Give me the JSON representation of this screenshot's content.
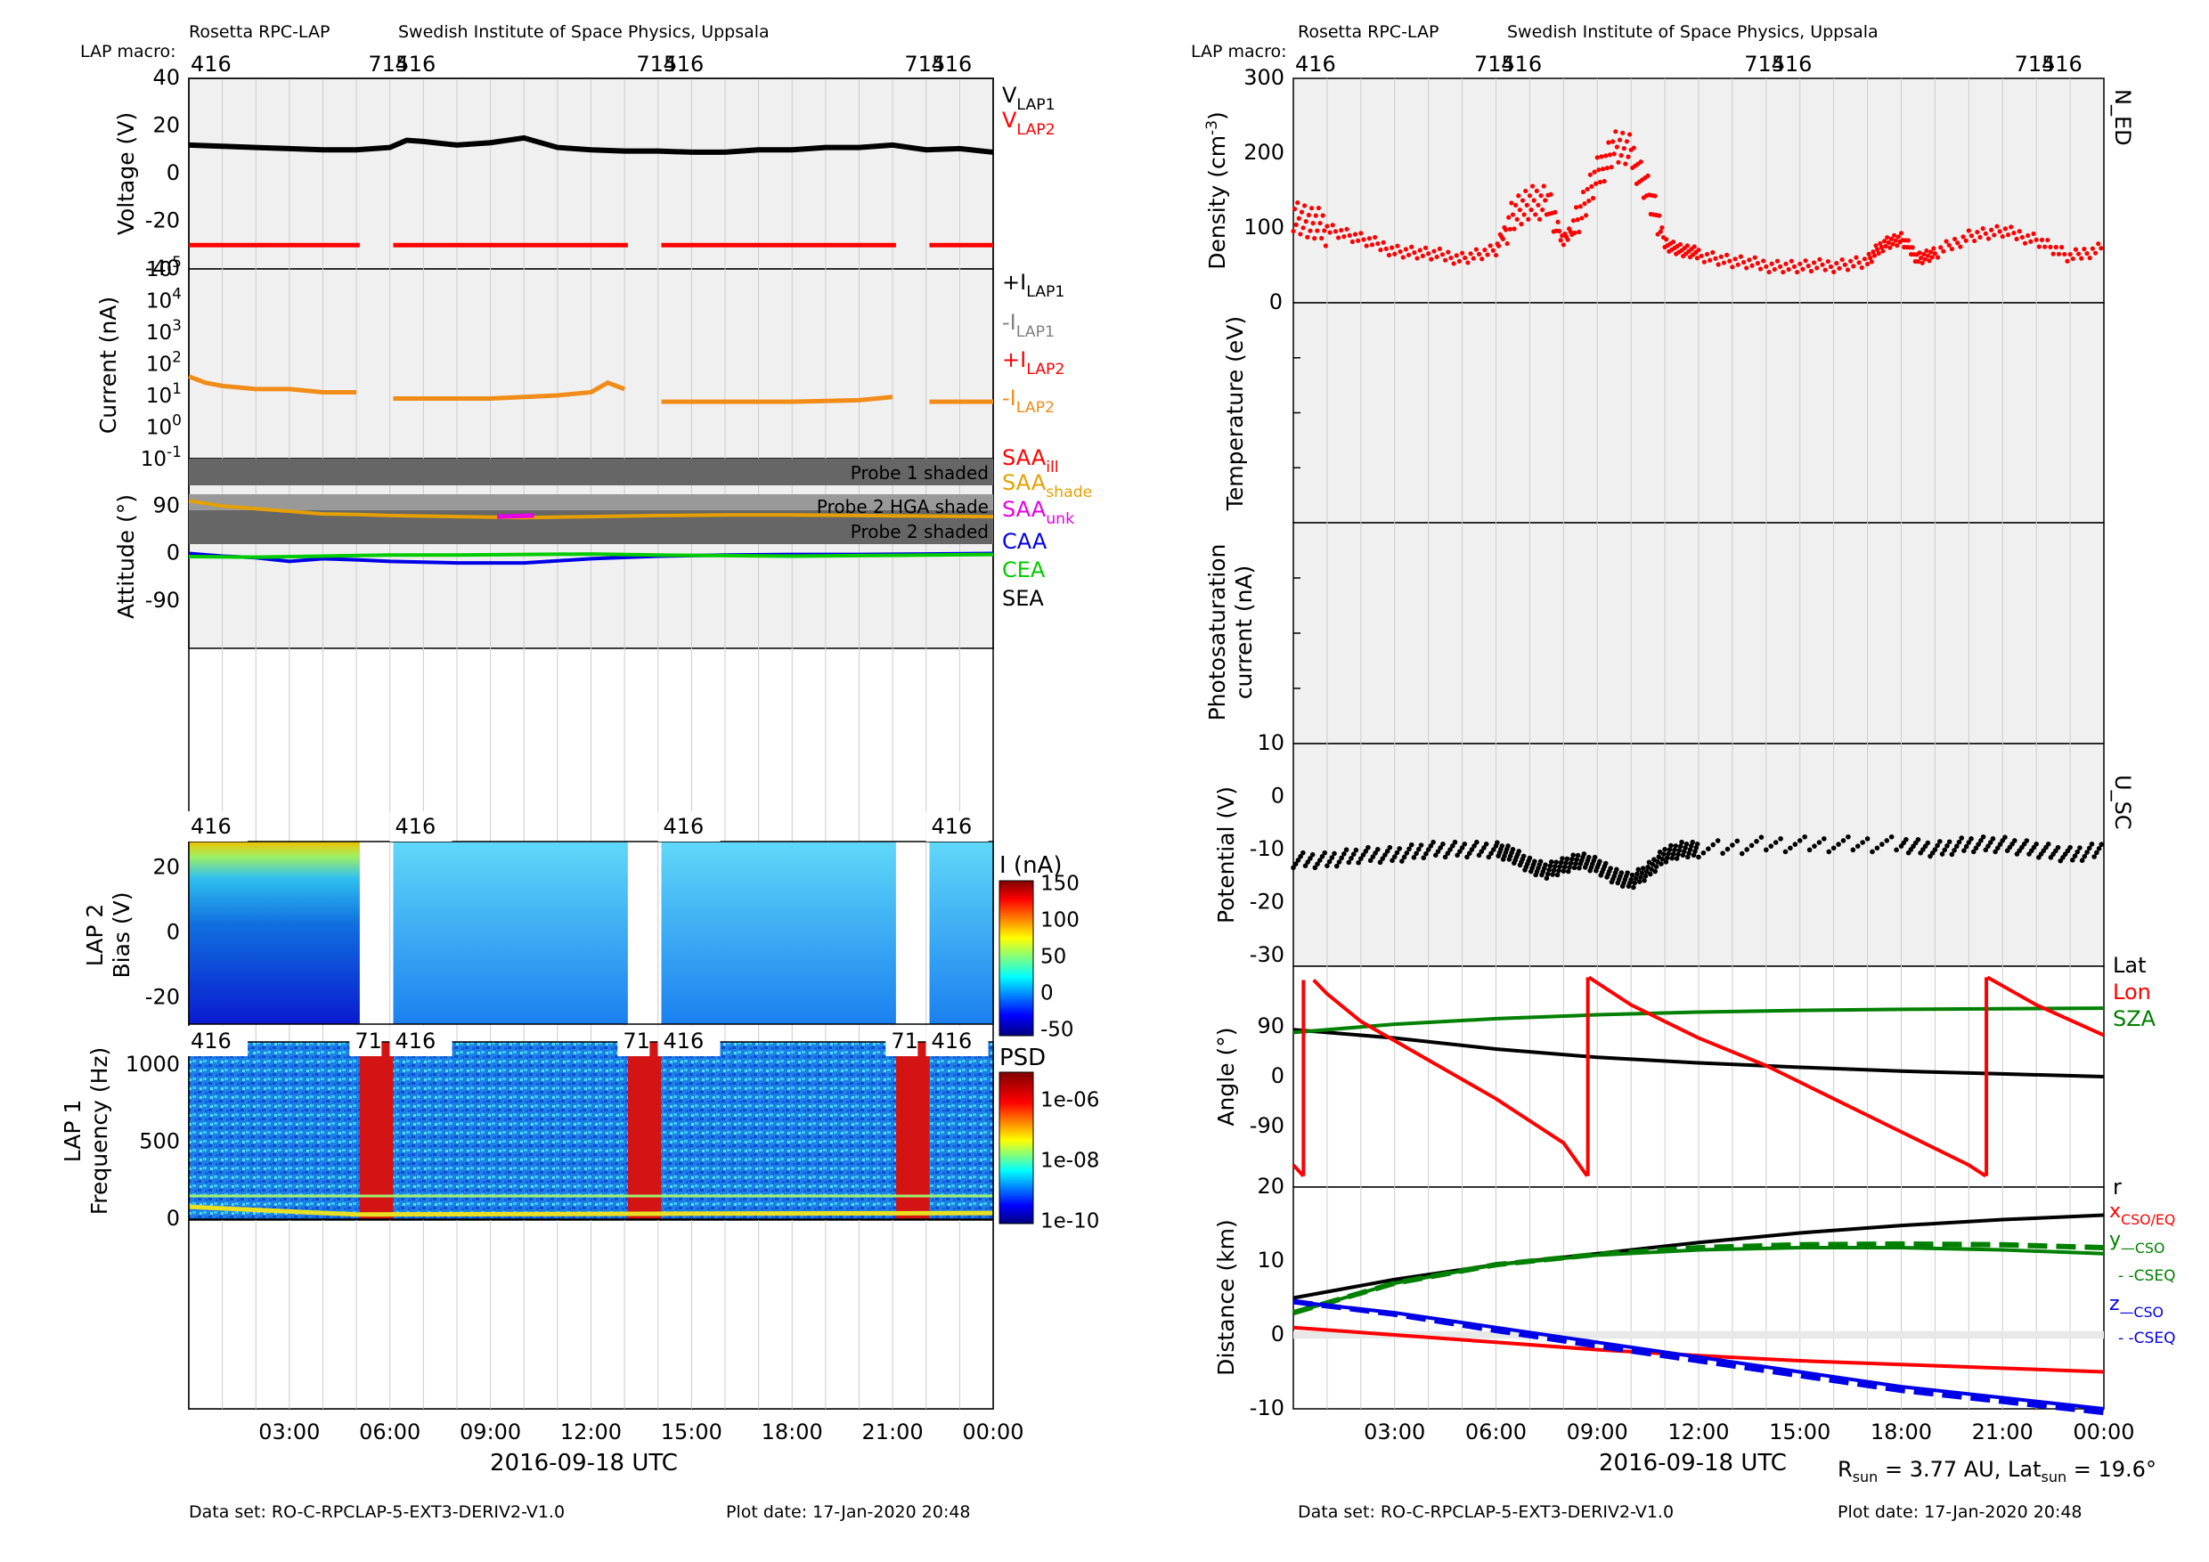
{
  "left": {
    "header": {
      "instrument": "Rosetta RPC-LAP",
      "institute": "Swedish Institute of Space Physics, Uppsala",
      "macro_label": "LAP macro:"
    },
    "footer": {
      "dataset": "Data set: RO-C-RPCLAP-5-EXT3-DERIV2-V1.0",
      "plot_date": "Plot date: 17-Jan-2020 20:48"
    },
    "xlabel": "2016-09-18 UTC",
    "xticks": [
      "03:00",
      "06:00",
      "09:00",
      "12:00",
      "15:00",
      "18:00",
      "21:00",
      "00:00"
    ]
  },
  "right": {
    "header": {
      "instrument": "Rosetta RPC-LAP",
      "institute": "Swedish Institute of Space Physics, Uppsala",
      "macro_label": "LAP macro:"
    },
    "footer": {
      "dataset": "Data set: RO-C-RPCLAP-5-EXT3-DERIV2-V1.0",
      "plot_date": "Plot date: 17-Jan-2020 20:48"
    },
    "xlabel": "2016-09-18 UTC",
    "xticks": [
      "03:00",
      "06:00",
      "09:00",
      "12:00",
      "15:00",
      "18:00",
      "21:00",
      "00:00"
    ],
    "sun_info": {
      "r_sun": "3.77 AU",
      "lat_sun": "19.6°"
    }
  },
  "macro_markers": {
    "left_top": [
      "416",
      "715",
      "416",
      "715",
      "416",
      "715",
      "416"
    ],
    "spec_top": [
      "416",
      "416",
      "416",
      "416"
    ],
    "psd_top": [
      "416",
      "71",
      "416",
      "71",
      "416",
      "71",
      "416"
    ]
  },
  "colors": {
    "black": "#000000",
    "red": "#ff0000",
    "orange": "#f28c18",
    "gray": "#808080",
    "green": "#00cc00",
    "darkgreen": "#008000",
    "blue": "#0000e6",
    "magenta": "#e600e6",
    "saa": "#e6a000",
    "panel_bg": "#f0f0f0",
    "shade": "#666666"
  },
  "chart_data": [
    {
      "type": "line",
      "id": "voltage",
      "ylabel": "Voltage (V)",
      "yticks": [
        "40",
        "20",
        "0",
        "-20",
        "-40"
      ],
      "ylim": [
        -40,
        40
      ],
      "xlim": [
        0,
        24
      ],
      "legend": [
        {
          "name": "V",
          "sub": "LAP1",
          "color": "#000000"
        },
        {
          "name": "V",
          "sub": "LAP2",
          "color": "#ff0000"
        }
      ],
      "series": [
        {
          "name": "V_LAP1",
          "x": [
            0,
            1,
            2,
            3,
            4,
            5,
            6,
            6.5,
            7,
            8,
            9,
            9.5,
            10,
            11,
            12,
            13,
            14,
            15,
            16,
            17,
            18,
            19,
            20,
            21,
            22,
            23,
            24
          ],
          "y": [
            12,
            11.5,
            11,
            10.5,
            10,
            10,
            11,
            14,
            13.5,
            12,
            13,
            14,
            15,
            11,
            10,
            9.5,
            9.5,
            9,
            9,
            10,
            10,
            11,
            11,
            12,
            10,
            10.5,
            9
          ]
        },
        {
          "name": "V_LAP2",
          "segments": [
            [
              0,
              5.1
            ],
            [
              6.1,
              13.1
            ],
            [
              14.1,
              21.1
            ],
            [
              22.1,
              24
            ]
          ],
          "y": -30
        }
      ]
    },
    {
      "type": "line",
      "id": "current",
      "ylabel": "Current (nA)",
      "yticks": [
        "10^5",
        "10^4",
        "10^3",
        "10^2",
        "10^1",
        "10^0",
        "10^-1"
      ],
      "ylim": [
        -1,
        5
      ],
      "yscale": "log",
      "legend": [
        {
          "name": "+I",
          "sub": "LAP1",
          "color": "#000000"
        },
        {
          "name": "-I",
          "sub": "LAP1",
          "color": "#808080"
        },
        {
          "name": "+I",
          "sub": "LAP2",
          "color": "#ff0000"
        },
        {
          "name": "-I",
          "sub": "LAP2",
          "color": "#f28c18"
        }
      ],
      "series": [
        {
          "name": "-I_LAP2",
          "segments": [
            [
              0,
              5.1
            ],
            [
              6.1,
              13.1
            ],
            [
              14.1,
              21.1
            ],
            [
              22.1,
              24
            ]
          ],
          "x": [
            0,
            0.5,
            1,
            2,
            3,
            4,
            5,
            6.1,
            7,
            8,
            9,
            10,
            11,
            12,
            12.5,
            13,
            14.1,
            16,
            18,
            20,
            21,
            22.1,
            24
          ],
          "log10y": [
            1.6,
            1.4,
            1.3,
            1.2,
            1.2,
            1.1,
            1.1,
            0.9,
            0.9,
            0.9,
            0.9,
            0.95,
            1.0,
            1.1,
            1.4,
            1.2,
            0.8,
            0.8,
            0.8,
            0.85,
            0.95,
            0.8,
            0.8
          ]
        }
      ]
    },
    {
      "type": "line",
      "id": "attitude",
      "ylabel": "Attitude (°)",
      "yticks": [
        "90",
        "0",
        "-90"
      ],
      "ylim": [
        -180,
        180
      ],
      "annotations": [
        "Probe 1 shaded",
        "Probe 2 HGA shade",
        "Probe 2 shaded"
      ],
      "legend": [
        {
          "name": "SAA",
          "sub": "ill",
          "color": "#ff0000"
        },
        {
          "name": "SAA",
          "sub": "shade",
          "color": "#e6a000"
        },
        {
          "name": "SAA",
          "sub": "unk",
          "color": "#e600e6"
        },
        {
          "name": "CAA",
          "color": "#0000e6"
        },
        {
          "name": "CEA",
          "color": "#00cc00"
        },
        {
          "name": "SEA",
          "color": "#000000"
        }
      ],
      "series": [
        {
          "name": "SAA",
          "x": [
            0,
            1,
            2,
            3,
            4,
            5,
            6,
            8,
            10,
            12,
            14,
            16,
            18,
            20,
            22,
            24
          ],
          "y": [
            100,
            90,
            85,
            80,
            75,
            74,
            72,
            70,
            68,
            70,
            72,
            73,
            73,
            72,
            71,
            70
          ]
        },
        {
          "name": "CAA",
          "x": [
            0,
            1,
            2,
            3,
            4,
            5,
            6,
            8,
            10,
            12,
            14,
            16,
            18,
            20,
            22,
            24
          ],
          "y": [
            0,
            -5,
            -8,
            -15,
            -10,
            -12,
            -15,
            -18,
            -18,
            -10,
            -5,
            -3,
            -2,
            -2,
            -1,
            0
          ]
        },
        {
          "name": "CEA",
          "x": [
            0,
            2,
            4,
            6,
            8,
            10,
            12,
            14,
            16,
            18,
            20,
            22,
            24
          ],
          "y": [
            -6,
            -7,
            -5,
            -3,
            -3,
            -2,
            -1,
            -3,
            -4,
            -5,
            -4,
            -3,
            -2
          ]
        }
      ]
    },
    {
      "type": "heatmap",
      "id": "lap2bias",
      "ylabel": "LAP 2 Bias (V)",
      "yticks": [
        "20",
        "0",
        "-20"
      ],
      "ylim": [
        -28,
        28
      ],
      "colorbar": {
        "label": "I (nA)",
        "ticks": [
          "150",
          "100",
          "50",
          "0",
          "-50"
        ]
      },
      "gaps": [
        [
          5.1,
          6.1
        ],
        [
          13.1,
          14.1
        ],
        [
          21.1,
          22.1
        ]
      ]
    },
    {
      "type": "heatmap",
      "id": "lap1psd",
      "ylabel": "LAP 1 Frequency (Hz)",
      "yticks": [
        "1000",
        "500",
        "0"
      ],
      "ylim": [
        0,
        1150
      ],
      "colorbar": {
        "label": "PSD",
        "ticks": [
          "1e-06",
          "1e-08",
          "1e-10"
        ]
      },
      "hot_bands": [
        [
          5.1,
          6.1
        ],
        [
          13.1,
          14.1
        ],
        [
          21.1,
          22.1
        ]
      ]
    },
    {
      "type": "scatter",
      "id": "density",
      "ylabel": "Density (cm^-3)",
      "yticks": [
        "300",
        "200",
        "100",
        "0"
      ],
      "ylim": [
        0,
        300
      ],
      "legend": [
        {
          "name": "N_ED",
          "color": "#000000"
        }
      ],
      "series": [
        {
          "name": "N_ED",
          "x": [
            0,
            0.5,
            1,
            2,
            3,
            4,
            5,
            6,
            6.5,
            7,
            7.5,
            8,
            8.5,
            9,
            9.5,
            10,
            10.5,
            11,
            11.5,
            12,
            13,
            14,
            15,
            16,
            17,
            17.5,
            18,
            18.5,
            19,
            20,
            21,
            22,
            23,
            24
          ],
          "y": [
            120,
            105,
            100,
            85,
            70,
            65,
            60,
            70,
            120,
            130,
            140,
            80,
            120,
            170,
            210,
            200,
            150,
            80,
            70,
            65,
            55,
            50,
            48,
            50,
            55,
            80,
            85,
            60,
            65,
            90,
            95,
            85,
            60,
            75
          ]
        }
      ]
    },
    {
      "type": "line",
      "id": "temperature",
      "ylabel": "Temperature (eV)",
      "series": []
    },
    {
      "type": "line",
      "id": "photosat",
      "ylabel": "Photosaturation current (nA)",
      "yticks": [
        "10"
      ],
      "series": []
    },
    {
      "type": "scatter",
      "id": "potential",
      "ylabel": "Potential (V)",
      "yticks": [
        "0",
        "-10",
        "-20",
        "-30"
      ],
      "ylim": [
        -32,
        10
      ],
      "legend": [
        {
          "name": "U_SC",
          "color": "#000000"
        }
      ],
      "series": [
        {
          "name": "U_SC",
          "x": [
            0,
            1,
            2,
            3,
            4,
            5,
            6,
            6.5,
            7,
            7.5,
            8,
            8.5,
            9,
            9.5,
            10,
            10.5,
            11,
            11.5,
            12,
            14,
            16,
            18,
            19,
            20,
            21,
            22,
            23,
            24
          ],
          "y": [
            -12,
            -12,
            -11,
            -11,
            -10,
            -10,
            -10,
            -11,
            -13,
            -14,
            -13,
            -12,
            -13,
            -15,
            -16,
            -14,
            -11,
            -10,
            -10,
            -9,
            -9,
            -9,
            -10,
            -9,
            -9,
            -10,
            -11,
            -10
          ]
        }
      ]
    },
    {
      "type": "line",
      "id": "angle",
      "ylabel": "Angle (°)",
      "yticks": [
        "90",
        "0",
        "-90"
      ],
      "ylim": [
        -200,
        200
      ],
      "legend": [
        {
          "name": "Lat",
          "color": "#000000"
        },
        {
          "name": "Lon",
          "color": "#ff0000"
        },
        {
          "name": "SZA",
          "color": "#008000"
        }
      ],
      "series": [
        {
          "name": "Lat",
          "x": [
            0,
            3,
            6,
            9,
            12,
            15,
            18,
            21,
            24
          ],
          "y": [
            85,
            70,
            50,
            35,
            25,
            17,
            10,
            5,
            0
          ]
        },
        {
          "name": "SZA",
          "x": [
            0,
            3,
            6,
            9,
            12,
            15,
            18,
            21,
            24
          ],
          "y": [
            80,
            95,
            105,
            112,
            117,
            120,
            122,
            123,
            124
          ]
        },
        {
          "name": "Lon",
          "x": [
            0,
            0.3,
            0.6,
            1,
            2,
            4,
            6,
            8,
            8.7,
            8.75,
            10,
            12,
            14,
            16,
            18,
            20,
            20.5,
            20.55,
            22,
            24
          ],
          "y": [
            -160,
            -180,
            175,
            150,
            100,
            30,
            -40,
            -120,
            -180,
            180,
            130,
            70,
            20,
            -40,
            -100,
            -160,
            -180,
            180,
            130,
            75
          ]
        }
      ]
    },
    {
      "type": "line",
      "id": "distance",
      "ylabel": "Distance (km)",
      "yticks": [
        "20",
        "10",
        "0",
        "-10"
      ],
      "ylim": [
        -10,
        20
      ],
      "legend": [
        {
          "name": "r",
          "color": "#000000"
        },
        {
          "name": "x",
          "sub": "CSO/EQ",
          "color": "#ff0000"
        },
        {
          "name": "y",
          "sub": "—CSO",
          "sub2": "- -CSEQ",
          "color": "#008000"
        },
        {
          "name": "z",
          "sub": "—CSO",
          "sub2": "- -CSEQ",
          "color": "#0000e6"
        }
      ],
      "series": [
        {
          "name": "r",
          "x": [
            0,
            3,
            6,
            9,
            12,
            15,
            18,
            21,
            24
          ],
          "y": [
            5,
            7.5,
            9.5,
            11,
            12.5,
            13.8,
            14.8,
            15.6,
            16.2
          ]
        },
        {
          "name": "x",
          "x": [
            0,
            3,
            6,
            9,
            12,
            15,
            18,
            21,
            24
          ],
          "y": [
            1,
            0,
            -1,
            -2,
            -2.8,
            -3.5,
            -4,
            -4.5,
            -5
          ]
        },
        {
          "name": "y_CSO",
          "x": [
            0,
            3,
            6,
            9,
            12,
            15,
            18,
            21,
            24
          ],
          "y": [
            3,
            7,
            9.5,
            10.8,
            11.5,
            11.8,
            11.8,
            11.5,
            11
          ]
        },
        {
          "name": "y_CSEQ",
          "x": [
            0,
            3,
            6,
            9,
            12,
            15,
            18,
            21,
            24
          ],
          "y": [
            3,
            7,
            9.5,
            10.9,
            11.8,
            12.2,
            12.3,
            12.2,
            11.8
          ],
          "dashed": true
        },
        {
          "name": "z_CSO",
          "x": [
            0,
            3,
            6,
            9,
            12,
            15,
            18,
            21,
            24
          ],
          "y": [
            4.5,
            3,
            1,
            -1,
            -3,
            -5,
            -7,
            -8.5,
            -10
          ]
        },
        {
          "name": "z_CSEQ",
          "x": [
            0,
            3,
            6,
            9,
            12,
            15,
            18,
            21,
            24
          ],
          "y": [
            4.5,
            2.8,
            0.6,
            -1.5,
            -3.5,
            -5.5,
            -7.5,
            -9,
            -10.5
          ],
          "dashed": true
        }
      ]
    }
  ]
}
